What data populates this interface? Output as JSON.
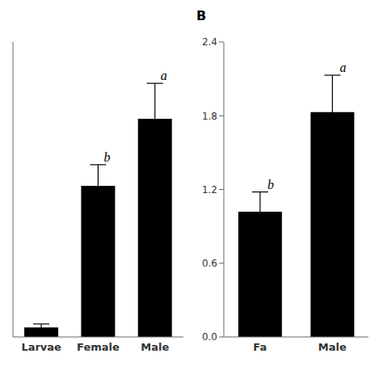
{
  "chart_data": [
    {
      "type": "bar",
      "categories": [
        "Larvae",
        "Female",
        "Male"
      ],
      "values": [
        0.08,
        1.28,
        1.85
      ],
      "errors": [
        0.03,
        0.18,
        0.3
      ],
      "sig_labels": [
        null,
        "b",
        "a"
      ],
      "ylim": [
        0,
        2.5
      ],
      "yticks": [],
      "tick_labels": "x",
      "color": "#000000"
    },
    {
      "type": "bar",
      "title": "B",
      "categories": [
        "Fa",
        "Male"
      ],
      "values": [
        1.02,
        1.83
      ],
      "errors": [
        0.16,
        0.3
      ],
      "sig_labels": [
        "b",
        "a"
      ],
      "ylim": [
        0.0,
        2.4
      ],
      "yticks": [
        {
          "value": 0.0,
          "label": "0.0"
        },
        0.6,
        1.2,
        1.8,
        2.4
      ],
      "color": "#000000"
    }
  ]
}
